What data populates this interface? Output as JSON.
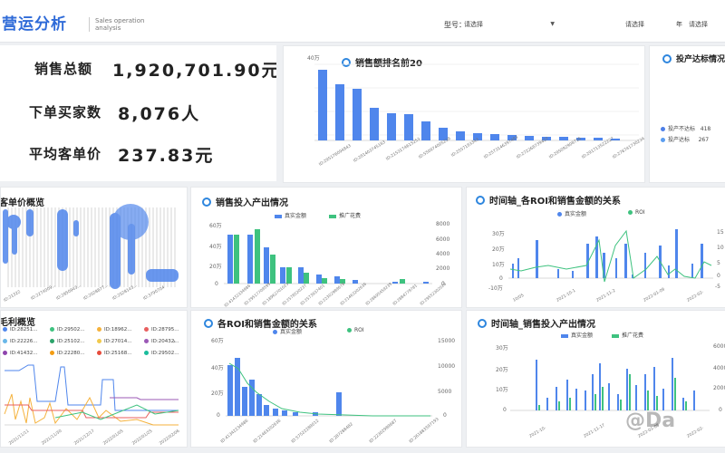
{
  "header": {
    "title": "营运分析",
    "subtitle_line1": "Sales operation",
    "subtitle_line2": "analysis",
    "model_label": "型号：",
    "model_select": "请选择",
    "select2": "请选择",
    "year_label": "年",
    "select3": "请选择"
  },
  "kpis": [
    {
      "label": "销售总额",
      "value": "1,920,701.90元",
      "icon": "money-icon",
      "color": "#f28a5c"
    },
    {
      "label": "下单买家数",
      "value": "8,076人",
      "icon": "bar-chart-icon",
      "color": "#4f9ee8"
    },
    {
      "label": "平均客单价",
      "value": "237.83元",
      "icon": "pie-chart-icon",
      "color": "#e8726e"
    }
  ],
  "top20": {
    "title": "销售额排名前20",
    "y_unit": "40万",
    "x_labels": [
      "ID:295176094843",
      "ID:281403745183",
      "ID:2153174615253",
      "ID:550974005239",
      "ID:2557183343",
      "ID:2573146397483",
      "ID:272268739427",
      "ID:295092908716",
      "ID:291713522227",
      "ID:276741730234"
    ]
  },
  "roi_panel": {
    "title": "投产达标情况",
    "legend": [
      {
        "label": "投产不达标",
        "value": "418",
        "color": "#4d7fe8"
      },
      {
        "label": "投产达标",
        "value": "267",
        "color": "#5b9ef0"
      }
    ]
  },
  "unit_price": {
    "title": "客单价概览"
  },
  "investment": {
    "title": "销售投入产出情况",
    "legend": [
      "真实金额",
      "推广花费"
    ],
    "y_left": [
      "60万",
      "40万",
      "20万",
      "0"
    ],
    "y_right": [
      "8000",
      "6000",
      "4000",
      "2000",
      "0"
    ]
  },
  "timeline_roi": {
    "title": "时间轴_各ROI和销售金额的关系",
    "legend": [
      "真实金额",
      "ROI"
    ],
    "y_left": [
      "30万",
      "20万",
      "10万",
      "0",
      "-10万"
    ],
    "y_right": [
      "15",
      "10",
      "5",
      "0",
      "-5"
    ],
    "x_labels": [
      "10/05",
      "2021-10-1",
      "2021-11-2",
      "2022-01-09",
      "2022-02-"
    ]
  },
  "gross": {
    "title": "毛利概览",
    "legend": [
      "ID:28251...",
      "ID:29502...",
      "ID:18962...",
      "ID:28795...",
      "ID:22226...",
      "ID:25102...",
      "ID:27014...",
      "ID:20432...",
      "ID:41432...",
      "ID:22280...",
      "ID:25168...",
      "ID:29502..."
    ],
    "x_labels": [
      "2021/11/11",
      "2021/11/30",
      "2021/12/17",
      "2022/01/05",
      "2022/01/25",
      "2022/02/06"
    ]
  },
  "roi_sales": {
    "title": "各ROI和销售金额的关系",
    "legend": [
      "真实金额",
      "ROI"
    ],
    "y_left": [
      "60万",
      "40万",
      "20万",
      "0"
    ],
    "y_right": [
      "15000",
      "10000",
      "5000",
      "0"
    ],
    "x_labels": [
      "ID:41342234986",
      "ID:21463202636",
      "ID:57522289012",
      "ID:287288482",
      "ID:22302989687",
      "ID:261883597193"
    ]
  },
  "timeline_invest": {
    "title": "时间轴_销售投入产出情况",
    "legend": [
      "真实金额",
      "推广花费"
    ],
    "y_left": [
      "30万",
      "20万",
      "10万",
      "0"
    ],
    "y_right": [
      "6000",
      "4000",
      "2000",
      "0"
    ],
    "x_labels": [
      "2021-10-",
      "2021-11-17",
      "2022-01-08",
      "2022-02-"
    ]
  },
  "watermark": "@Da",
  "colors": {
    "accent": "#2f6bd8",
    "bar": "#4f86ec",
    "green": "#3ec27f"
  }
}
